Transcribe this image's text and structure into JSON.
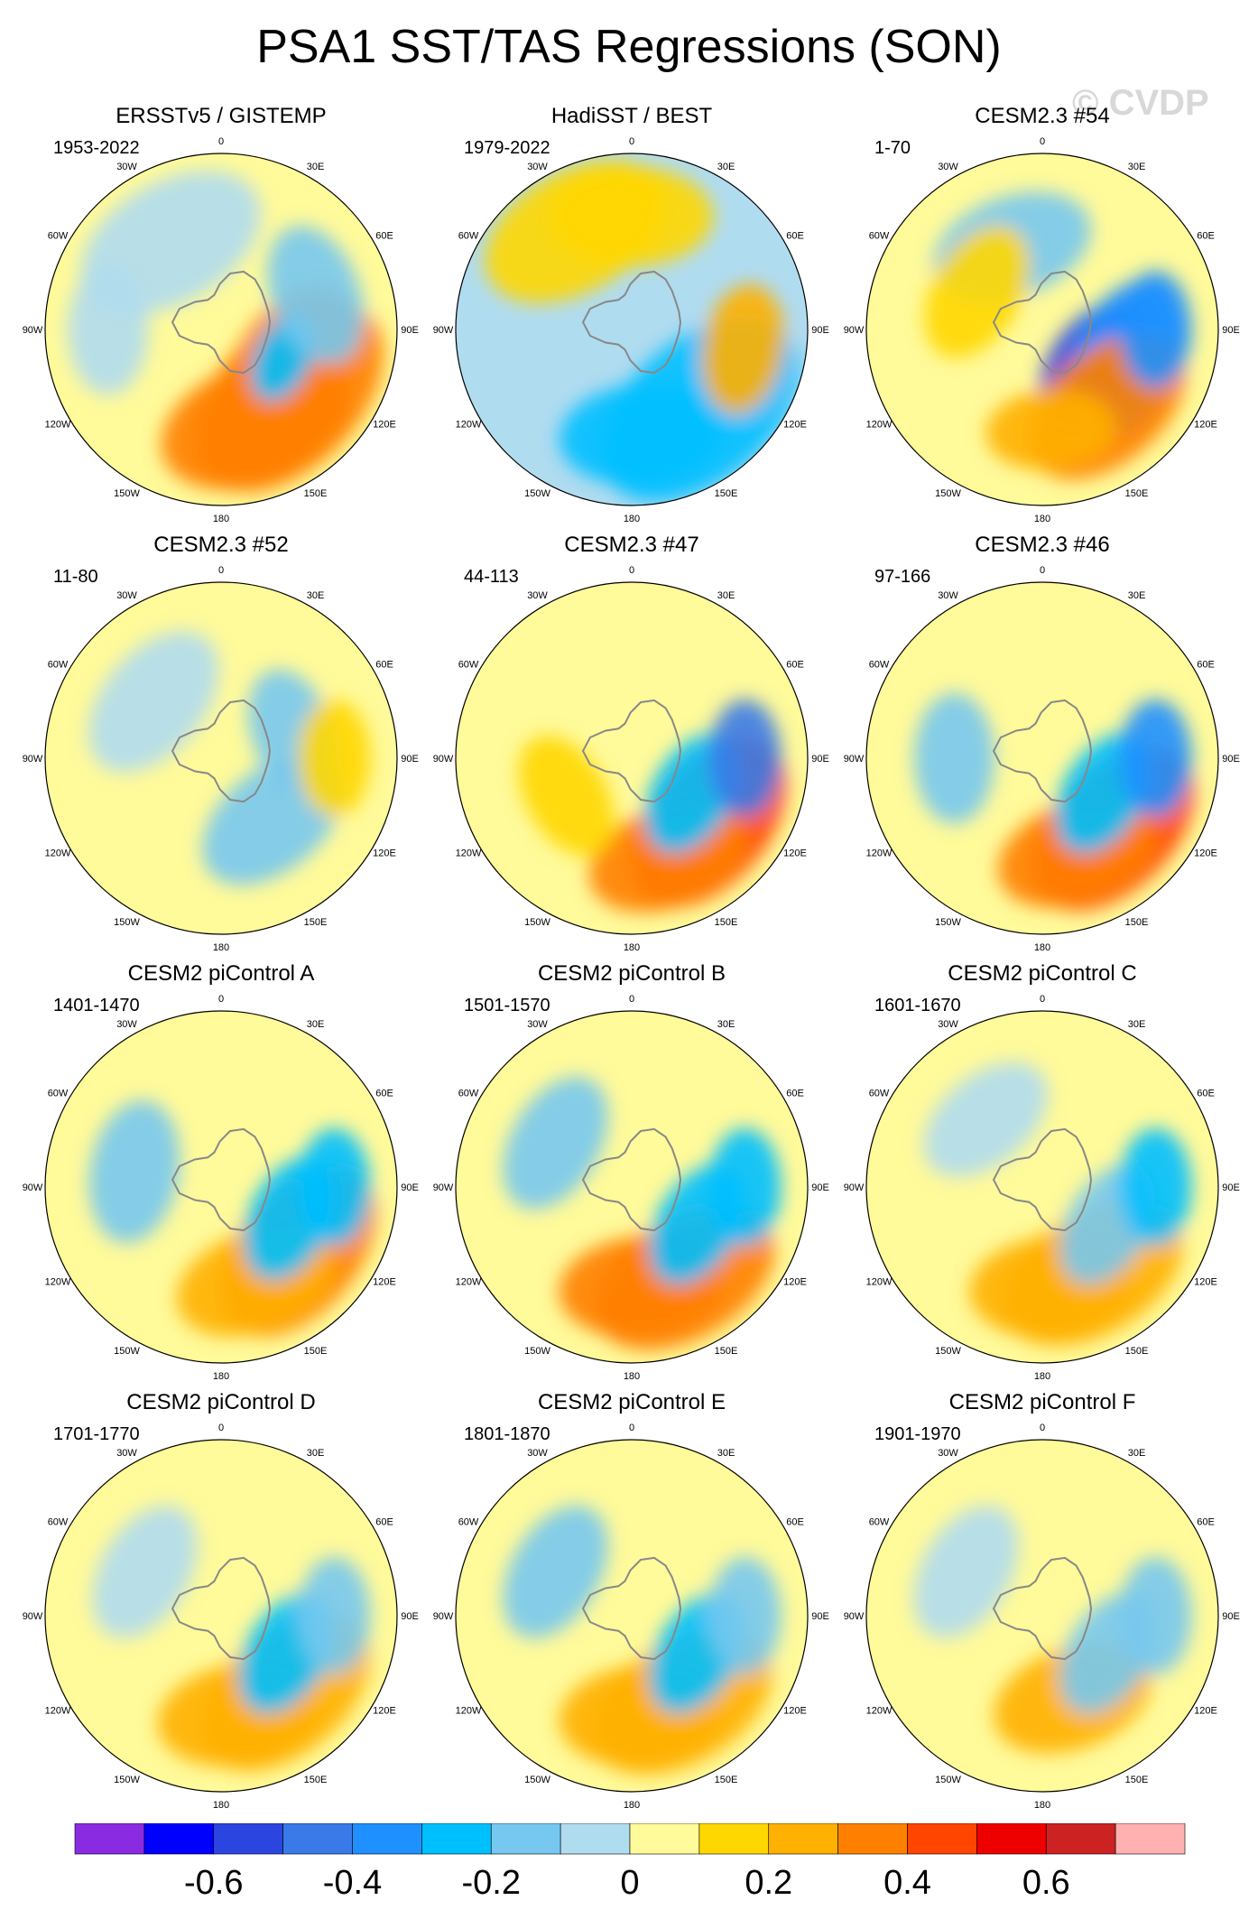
{
  "title": "PSA1 SST/TAS Regressions (SON)",
  "watermark": "© CVDP",
  "colors": {
    "levels": [
      "#8a2be2",
      "#0000ff",
      "#2b46e0",
      "#3a7ae8",
      "#1e90ff",
      "#00bfff",
      "#77c8f0",
      "#b0dcf0",
      "#fffa9a",
      "#ffd700",
      "#ffb000",
      "#ff8000",
      "#ff4500",
      "#ee0000",
      "#cc2222",
      "#ffb0b0"
    ],
    "coast": "#888888",
    "land": "#ffffff"
  },
  "chart_data": {
    "type": "heatmap",
    "projection": "south-polar-stereographic",
    "lon_labels": [
      "0",
      "30E",
      "60E",
      "90E",
      "120E",
      "150E",
      "180",
      "150W",
      "120W",
      "90W",
      "60W",
      "30W"
    ],
    "colorbar": {
      "tick_labels": [
        "-0.6",
        "-0.4",
        "-0.2",
        "0",
        "0.2",
        "0.4",
        "0.6"
      ],
      "boundaries": [
        -0.7,
        -0.6,
        -0.5,
        -0.4,
        -0.3,
        -0.2,
        -0.1,
        0,
        0.1,
        0.2,
        0.3,
        0.4,
        0.5,
        0.6,
        0.7
      ]
    },
    "panels": [
      {
        "title": "ERSSTv5 / GISTEMP",
        "years": "1953-2022",
        "background": 0.05,
        "features": [
          {
            "lon": 135,
            "lat": -52,
            "r": 35,
            "v": 0.35
          },
          {
            "lon": 120,
            "lat": -58,
            "r": 28,
            "v": 0.3
          },
          {
            "lon": 160,
            "lat": -50,
            "r": 30,
            "v": 0.32
          },
          {
            "lon": 115,
            "lat": -63,
            "r": 14,
            "v": -0.25
          },
          {
            "lon": 70,
            "lat": -50,
            "r": 22,
            "v": -0.12
          },
          {
            "lon": -30,
            "lat": -50,
            "r": 30,
            "v": -0.1
          },
          {
            "lon": -90,
            "lat": -45,
            "r": 20,
            "v": -0.1
          }
        ]
      },
      {
        "title": "HadiSST / BEST",
        "years": "1979-2022",
        "background": -0.05,
        "features": [
          {
            "lon": 140,
            "lat": -48,
            "r": 35,
            "v": -0.25
          },
          {
            "lon": 175,
            "lat": -48,
            "r": 25,
            "v": -0.3
          },
          {
            "lon": 100,
            "lat": -45,
            "r": 20,
            "v": 0.25
          },
          {
            "lon": -30,
            "lat": -45,
            "r": 30,
            "v": 0.1
          },
          {
            "lon": 0,
            "lat": -45,
            "r": 25,
            "v": 0.12
          }
        ]
      },
      {
        "title": "CESM2.3 #54",
        "years": "1-70",
        "background": 0.02,
        "features": [
          {
            "lon": 125,
            "lat": -65,
            "r": 22,
            "v": -0.55
          },
          {
            "lon": 110,
            "lat": -55,
            "r": 25,
            "v": -0.4
          },
          {
            "lon": 140,
            "lat": -50,
            "r": 28,
            "v": 0.3
          },
          {
            "lon": 175,
            "lat": -50,
            "r": 20,
            "v": 0.2
          },
          {
            "lon": 90,
            "lat": -45,
            "r": 18,
            "v": -0.4
          },
          {
            "lon": -20,
            "lat": -55,
            "r": 25,
            "v": -0.15
          },
          {
            "lon": -60,
            "lat": -60,
            "r": 22,
            "v": 0.12
          }
        ]
      },
      {
        "title": "CESM2.3 #52",
        "years": "11-80",
        "background": 0.0,
        "features": [
          {
            "lon": 140,
            "lat": -58,
            "r": 25,
            "v": -0.2
          },
          {
            "lon": 70,
            "lat": -60,
            "r": 20,
            "v": -0.2
          },
          {
            "lon": -50,
            "lat": -55,
            "r": 25,
            "v": -0.1
          },
          {
            "lon": 90,
            "lat": -45,
            "r": 18,
            "v": 0.1
          }
        ]
      },
      {
        "title": "CESM2.3 #47",
        "years": "44-113",
        "background": 0.02,
        "features": [
          {
            "lon": 130,
            "lat": -50,
            "r": 30,
            "v": 0.4
          },
          {
            "lon": 160,
            "lat": -48,
            "r": 25,
            "v": 0.35
          },
          {
            "lon": 120,
            "lat": -62,
            "r": 20,
            "v": -0.3
          },
          {
            "lon": 90,
            "lat": -45,
            "r": 18,
            "v": -0.45
          },
          {
            "lon": -120,
            "lat": -60,
            "r": 20,
            "v": 0.15
          }
        ]
      },
      {
        "title": "CESM2.3 #46",
        "years": "97-166",
        "background": 0.02,
        "features": [
          {
            "lon": 135,
            "lat": -50,
            "r": 30,
            "v": 0.4
          },
          {
            "lon": 160,
            "lat": -50,
            "r": 25,
            "v": 0.35
          },
          {
            "lon": 120,
            "lat": -62,
            "r": 20,
            "v": -0.25
          },
          {
            "lon": 90,
            "lat": -45,
            "r": 18,
            "v": -0.35
          },
          {
            "lon": -90,
            "lat": -55,
            "r": 20,
            "v": -0.15
          }
        ]
      },
      {
        "title": "CESM2 piControl A",
        "years": "1401-1470",
        "background": 0.02,
        "features": [
          {
            "lon": 130,
            "lat": -50,
            "r": 30,
            "v": 0.35
          },
          {
            "lon": 160,
            "lat": -50,
            "r": 25,
            "v": 0.25
          },
          {
            "lon": 115,
            "lat": -60,
            "r": 20,
            "v": -0.3
          },
          {
            "lon": 90,
            "lat": -45,
            "r": 18,
            "v": -0.25
          },
          {
            "lon": -80,
            "lat": -55,
            "r": 22,
            "v": -0.12
          }
        ]
      },
      {
        "title": "CESM2 piControl B",
        "years": "1501-1570",
        "background": 0.02,
        "features": [
          {
            "lon": 150,
            "lat": -48,
            "r": 30,
            "v": 0.3
          },
          {
            "lon": 175,
            "lat": -50,
            "r": 25,
            "v": 0.35
          },
          {
            "lon": 120,
            "lat": -60,
            "r": 20,
            "v": -0.3
          },
          {
            "lon": 90,
            "lat": -45,
            "r": 18,
            "v": -0.3
          },
          {
            "lon": -60,
            "lat": -55,
            "r": 22,
            "v": -0.12
          }
        ]
      },
      {
        "title": "CESM2 piControl C",
        "years": "1601-1670",
        "background": 0.02,
        "features": [
          {
            "lon": 150,
            "lat": -50,
            "r": 30,
            "v": 0.25
          },
          {
            "lon": 175,
            "lat": -50,
            "r": 25,
            "v": 0.25
          },
          {
            "lon": 120,
            "lat": -60,
            "r": 20,
            "v": -0.2
          },
          {
            "lon": 90,
            "lat": -45,
            "r": 18,
            "v": -0.25
          },
          {
            "lon": -40,
            "lat": -55,
            "r": 22,
            "v": -0.1
          }
        ]
      },
      {
        "title": "CESM2 piControl D",
        "years": "1701-1770",
        "background": 0.02,
        "features": [
          {
            "lon": 140,
            "lat": -50,
            "r": 30,
            "v": 0.25
          },
          {
            "lon": 170,
            "lat": -50,
            "r": 25,
            "v": 0.2
          },
          {
            "lon": 120,
            "lat": -60,
            "r": 20,
            "v": -0.25
          },
          {
            "lon": 90,
            "lat": -45,
            "r": 18,
            "v": -0.2
          },
          {
            "lon": -60,
            "lat": -55,
            "r": 22,
            "v": -0.1
          }
        ]
      },
      {
        "title": "CESM2 piControl E",
        "years": "1801-1870",
        "background": 0.02,
        "features": [
          {
            "lon": 150,
            "lat": -50,
            "r": 30,
            "v": 0.25
          },
          {
            "lon": 175,
            "lat": -50,
            "r": 25,
            "v": 0.2
          },
          {
            "lon": 120,
            "lat": -60,
            "r": 20,
            "v": -0.25
          },
          {
            "lon": 90,
            "lat": -45,
            "r": 18,
            "v": -0.2
          },
          {
            "lon": -60,
            "lat": -55,
            "r": 22,
            "v": -0.12
          }
        ]
      },
      {
        "title": "CESM2 piControl F",
        "years": "1901-1970",
        "background": 0.02,
        "features": [
          {
            "lon": 160,
            "lat": -55,
            "r": 25,
            "v": 0.25
          },
          {
            "lon": 120,
            "lat": -60,
            "r": 20,
            "v": -0.2
          },
          {
            "lon": 90,
            "lat": -45,
            "r": 18,
            "v": -0.2
          },
          {
            "lon": -60,
            "lat": -55,
            "r": 22,
            "v": -0.1
          }
        ]
      }
    ]
  }
}
